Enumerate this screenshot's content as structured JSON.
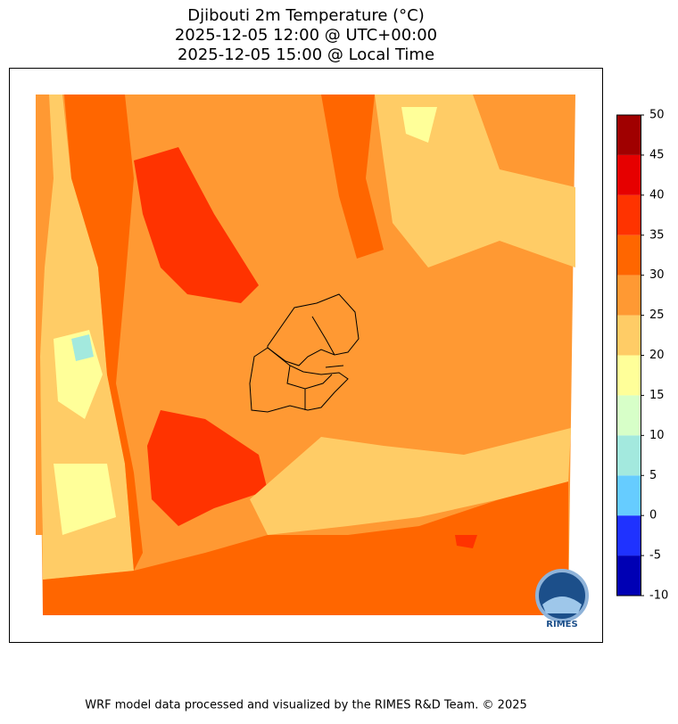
{
  "title": [
    "Djibouti 2m Temperature (°C)",
    "2025-12-05 12:00 @ UTC+00:00",
    "2025-12-05 15:00 @ Local Time"
  ],
  "colorbar": {
    "ticks": [
      -10,
      -5,
      0,
      5,
      10,
      15,
      20,
      25,
      30,
      35,
      40,
      45,
      50
    ],
    "colors": [
      "#0000b4",
      "#1f32ff",
      "#66ccff",
      "#a3e9de",
      "#d7ffc8",
      "#ffff99",
      "#ffcc66",
      "#ff9933",
      "#ff6600",
      "#ff3300",
      "#e60000",
      "#a00000"
    ]
  },
  "logo_text": "RIMES",
  "footer": "WRF model data processed and visualized by the RIMES R&D Team. © 2025"
}
